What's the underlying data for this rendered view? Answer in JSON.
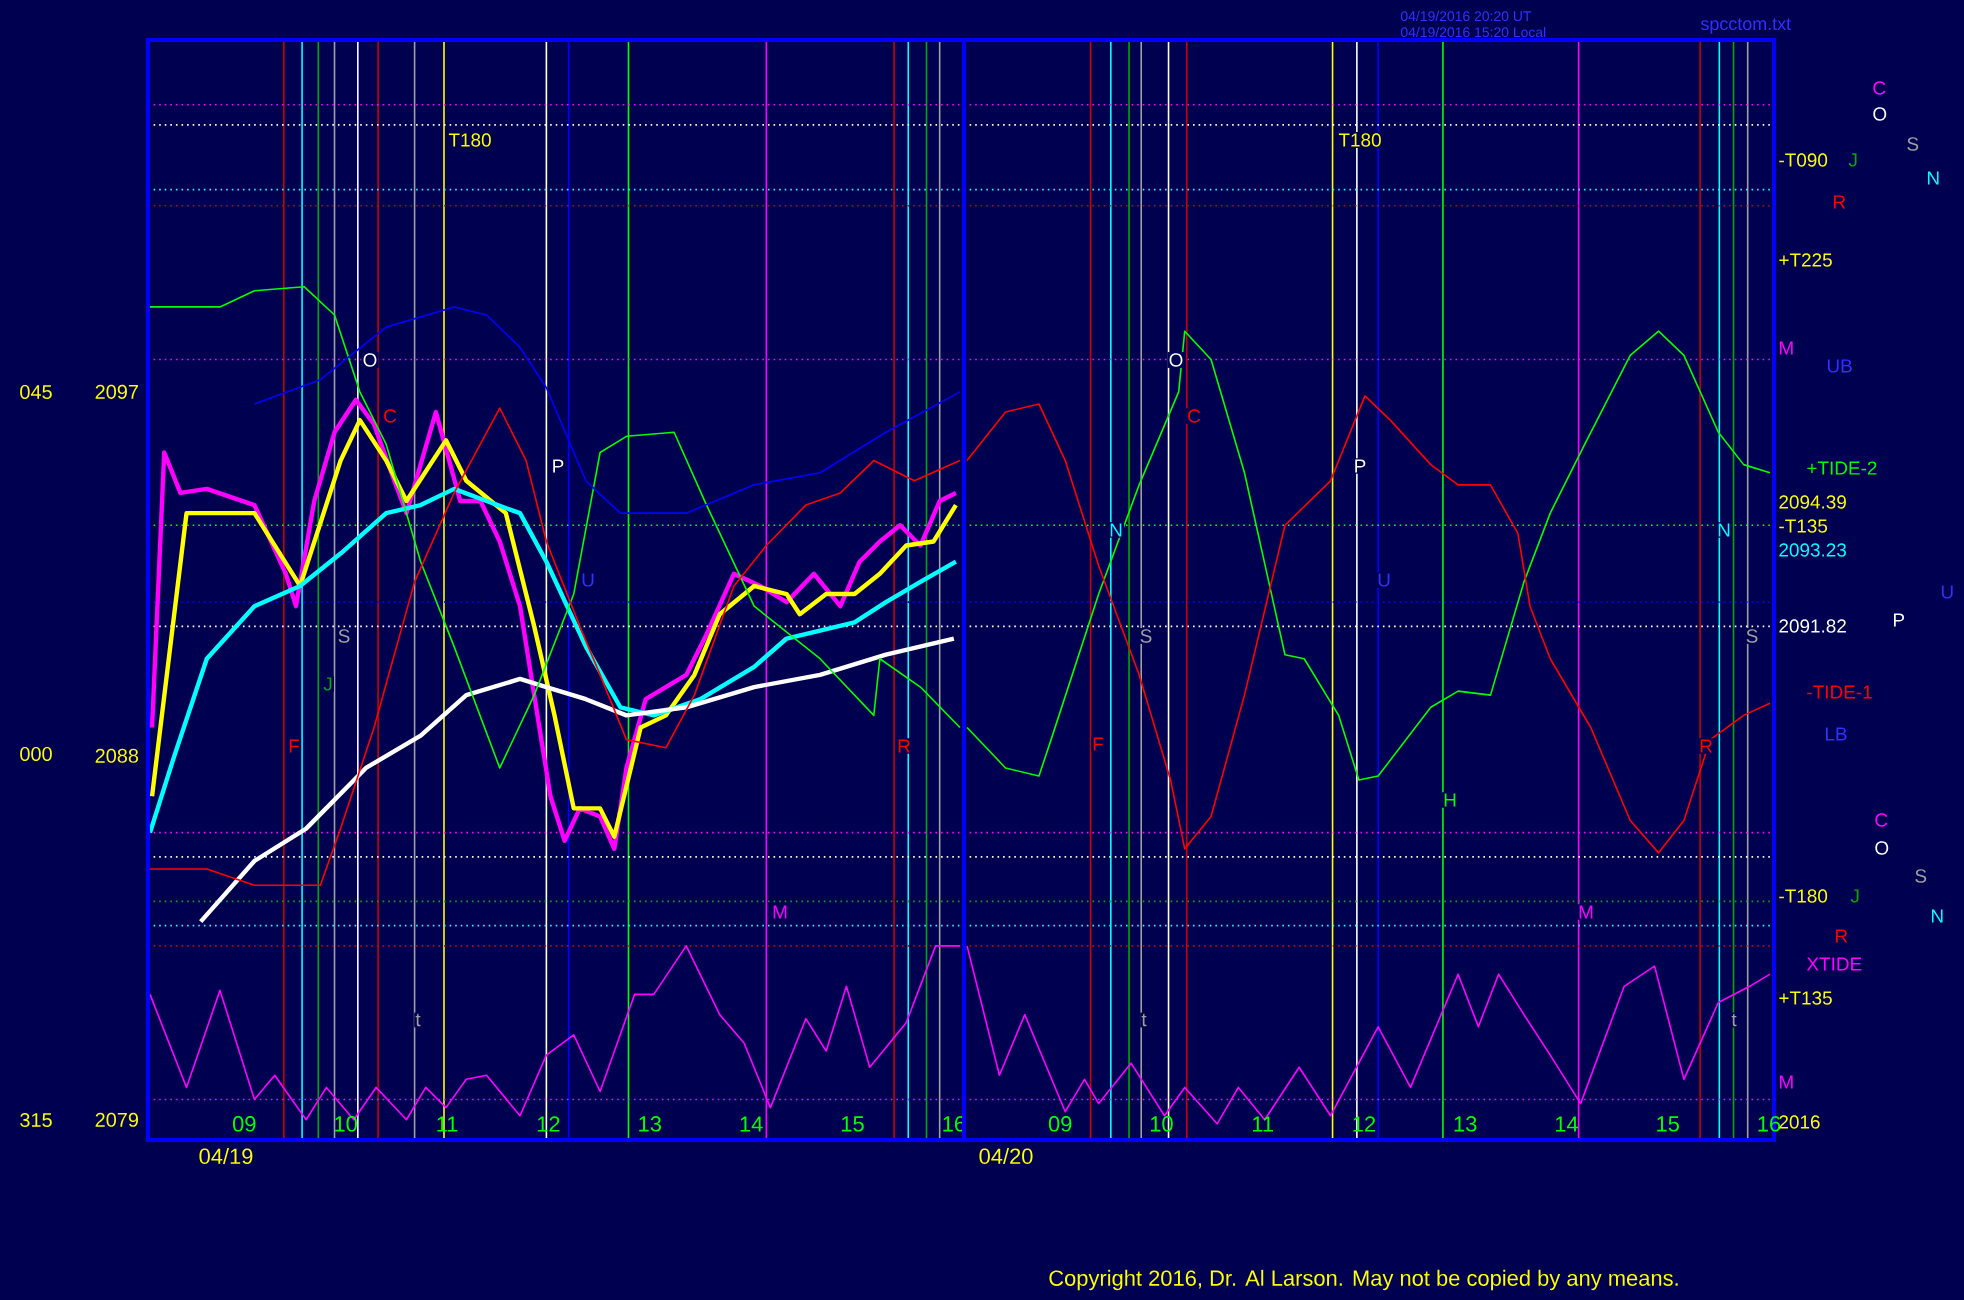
{
  "chart_data": [
    {
      "type": "line",
      "line_style": "solid",
      "xlim": [
        8.05,
        16.1
      ],
      "ylim": [
        2078.5,
        2105.7
      ],
      "xticks": [
        {
          "value": 9,
          "label": "09"
        },
        {
          "value": 10,
          "label": "10"
        },
        {
          "value": 11,
          "label": "11"
        },
        {
          "value": 12,
          "label": "12"
        },
        {
          "value": 13,
          "label": "13"
        },
        {
          "value": 14,
          "label": "14"
        },
        {
          "value": 15,
          "label": "15"
        },
        {
          "value": 16,
          "label": "16"
        }
      ],
      "yticks": [
        2079,
        2088,
        2097
      ],
      "series": [
        {
          "color": "#ff00ff",
          "x": [
            8.09,
            8.21,
            8.37,
            8.63,
            9.1,
            9.41,
            9.51,
            9.69,
            9.89,
            10.1,
            10.28,
            10.48,
            10.6,
            10.89,
            11.13,
            11.33,
            11.52,
            11.72,
            11.86,
            12.02,
            12.16,
            12.31,
            12.51,
            12.65,
            12.77,
            12.96,
            13.16,
            13.36,
            13.56,
            13.83,
            14.09,
            14.35,
            14.62,
            14.88,
            15.07,
            15.27,
            15.47,
            15.67,
            15.86,
            16.02
          ],
          "values": [
            2088.7,
            2095.5,
            2094.5,
            2094.6,
            2094.2,
            2092.5,
            2091.7,
            2094.3,
            2096.0,
            2096.8,
            2096.2,
            2094.8,
            2094.0,
            2096.5,
            2094.3,
            2094.3,
            2093.3,
            2091.7,
            2089.5,
            2087.0,
            2085.9,
            2086.7,
            2086.5,
            2085.7,
            2087.7,
            2089.4,
            2089.7,
            2090.0,
            2091.0,
            2092.5,
            2092.2,
            2091.8,
            2092.5,
            2091.7,
            2092.8,
            2093.3,
            2093.7,
            2093.2,
            2094.3,
            2094.5
          ]
        },
        {
          "color": "#ffff00",
          "x": [
            8.09,
            8.43,
            9.1,
            9.55,
            9.95,
            10.14,
            10.4,
            10.6,
            10.99,
            11.19,
            11.58,
            11.86,
            12.06,
            12.25,
            12.51,
            12.65,
            12.91,
            13.16,
            13.44,
            13.69,
            14.03,
            14.35,
            14.48,
            14.74,
            15.02,
            15.27,
            15.53,
            15.8,
            16.02
          ],
          "values": [
            2087.0,
            2094.0,
            2094.0,
            2092.2,
            2095.3,
            2096.3,
            2095.3,
            2094.3,
            2095.8,
            2094.8,
            2094.0,
            2091.2,
            2089.0,
            2086.7,
            2086.7,
            2086.0,
            2088.7,
            2089.0,
            2090.0,
            2091.5,
            2092.2,
            2092.0,
            2091.5,
            2092.0,
            2092.0,
            2092.5,
            2093.2,
            2093.3,
            2094.2
          ]
        },
        {
          "color": "#00ffff",
          "x": [
            8.07,
            8.31,
            8.63,
            9.1,
            9.55,
            9.95,
            10.4,
            10.74,
            11.07,
            11.39,
            11.72,
            11.98,
            12.37,
            12.71,
            13.04,
            13.5,
            14.03,
            14.35,
            15.02,
            15.33,
            15.67,
            16.02
          ],
          "values": [
            2086.1,
            2088.0,
            2090.4,
            2091.7,
            2092.2,
            2093.0,
            2094.0,
            2094.2,
            2094.6,
            2094.3,
            2094.0,
            2092.8,
            2090.7,
            2089.2,
            2089.0,
            2089.4,
            2090.2,
            2090.9,
            2091.3,
            2091.8,
            2092.3,
            2092.8
          ]
        },
        {
          "color": "#ffffff",
          "x": [
            8.57,
            9.1,
            9.61,
            10.2,
            10.74,
            11.19,
            11.72,
            11.98,
            12.37,
            12.77,
            13.36,
            14.03,
            14.68,
            15.33,
            16.0
          ],
          "values": [
            2083.9,
            2085.4,
            2086.2,
            2087.7,
            2088.5,
            2089.5,
            2089.9,
            2089.7,
            2089.4,
            2089.0,
            2089.2,
            2089.7,
            2090.0,
            2090.5,
            2090.9
          ]
        },
        {
          "color": "#00ff00",
          "x": [
            8.07,
            8.76,
            9.1,
            9.59,
            9.89,
            10.14,
            10.4,
            10.74,
            11.07,
            11.52,
            11.86,
            12.25,
            12.51,
            12.77,
            13.24,
            13.56,
            14.03,
            14.68,
            15.21,
            15.27,
            15.67,
            16.06
          ],
          "values": [
            2099.1,
            2099.1,
            2099.5,
            2099.6,
            2098.9,
            2097.0,
            2095.7,
            2092.8,
            2090.7,
            2087.7,
            2089.5,
            2092.0,
            2095.5,
            2095.9,
            2096.0,
            2094.2,
            2091.7,
            2090.4,
            2089.0,
            2090.4,
            2089.7,
            2088.7
          ]
        },
        {
          "color": "#ff0000",
          "x": [
            8.07,
            8.63,
            9.1,
            9.75,
            9.95,
            10.28,
            10.68,
            11.07,
            11.52,
            11.78,
            11.98,
            12.31,
            12.51,
            12.77,
            13.16,
            13.44,
            13.83,
            14.15,
            14.54,
            14.88,
            15.21,
            15.61,
            16.06
          ],
          "values": [
            2085.2,
            2085.2,
            2084.8,
            2084.8,
            2086.2,
            2088.7,
            2092.3,
            2094.5,
            2096.6,
            2095.3,
            2093.3,
            2091.2,
            2090.0,
            2088.4,
            2088.2,
            2089.5,
            2092.2,
            2093.2,
            2094.2,
            2094.5,
            2095.3,
            2094.8,
            2095.3
          ]
        },
        {
          "color": "#0000ff",
          "x": [
            9.1,
            9.75,
            10.4,
            11.07,
            11.39,
            11.72,
            11.98,
            12.37,
            12.71,
            13.36,
            14.03,
            14.68,
            15.33,
            16.06
          ],
          "values": [
            2096.7,
            2097.3,
            2098.6,
            2099.1,
            2098.9,
            2098.1,
            2097.1,
            2094.8,
            2094.0,
            2094.0,
            2094.7,
            2095.0,
            2096.0,
            2097.0
          ]
        },
        {
          "color": "#ff00ff",
          "x": [
            8.07,
            8.43,
            8.76,
            9.1,
            9.3,
            9.61,
            9.81,
            10.08,
            10.3,
            10.6,
            10.79,
            10.99,
            11.19,
            11.39,
            11.72,
            11.98,
            12.25,
            12.51,
            12.85,
            13.04,
            13.36,
            13.69,
            13.93,
            14.19,
            14.54,
            14.74,
            14.94,
            15.17,
            15.53,
            15.82,
            16.06
          ],
          "values": [
            2082.1,
            2079.8,
            2082.2,
            2079.5,
            2080.1,
            2079.0,
            2079.8,
            2079.0,
            2079.8,
            2079.0,
            2079.8,
            2079.3,
            2080.0,
            2080.1,
            2079.1,
            2080.6,
            2081.1,
            2079.7,
            2082.1,
            2082.1,
            2083.3,
            2081.6,
            2080.9,
            2079.3,
            2081.5,
            2080.7,
            2082.3,
            2080.3,
            2081.4,
            2083.3,
            2083.3
          ]
        }
      ],
      "ref_lines": [
        {
          "axis": "x",
          "value": 9.39,
          "color": "#cc0000",
          "line_style": "solid"
        },
        {
          "axis": "x",
          "value": 9.57,
          "color": "#00ffff",
          "line_style": "solid"
        },
        {
          "axis": "x",
          "value": 9.73,
          "color": "#00aa00",
          "line_style": "solid"
        },
        {
          "axis": "x",
          "value": 9.89,
          "color": "#a0a0a0",
          "line_style": "solid"
        },
        {
          "axis": "x",
          "value": 10.12,
          "color": "#ffffff",
          "line_style": "solid"
        },
        {
          "axis": "x",
          "value": 10.32,
          "color": "#cc0000",
          "line_style": "solid"
        },
        {
          "axis": "x",
          "value": 10.68,
          "color": "#a0a0a0",
          "line_style": "solid"
        },
        {
          "axis": "x",
          "value": 10.97,
          "color": "#ffff00",
          "line_style": "solid"
        },
        {
          "axis": "x",
          "value": 11.98,
          "color": "#ffffff",
          "line_style": "solid"
        },
        {
          "axis": "x",
          "value": 12.2,
          "color": "#0000ff",
          "line_style": "solid"
        },
        {
          "axis": "x",
          "value": 12.79,
          "color": "#00ff00",
          "line_style": "solid"
        },
        {
          "axis": "x",
          "value": 14.15,
          "color": "#ff00ff",
          "line_style": "solid"
        },
        {
          "axis": "x",
          "value": 15.41,
          "color": "#cc0000",
          "line_style": "solid"
        },
        {
          "axis": "x",
          "value": 15.55,
          "color": "#00ffff",
          "line_style": "solid"
        },
        {
          "axis": "x",
          "value": 15.73,
          "color": "#00aa00",
          "line_style": "solid"
        },
        {
          "axis": "x",
          "value": 15.86,
          "color": "#a0a0a0",
          "line_style": "solid"
        },
        {
          "axis": "y",
          "value": 2104.1,
          "color": "#ff00ff",
          "line_style": "dotted"
        },
        {
          "axis": "y",
          "value": 2103.6,
          "color": "#ffffff",
          "line_style": "dotted"
        },
        {
          "axis": "y",
          "value": 2102.0,
          "color": "#00ffff",
          "line_style": "dotted"
        },
        {
          "axis": "y",
          "value": 2101.6,
          "color": "#cc0000",
          "line_style": "dotted"
        },
        {
          "axis": "y",
          "value": 2097.8,
          "color": "#ff00ff",
          "line_style": "dotted"
        },
        {
          "axis": "y",
          "value": 2093.7,
          "color": "#00ff00",
          "line_style": "dotted"
        },
        {
          "axis": "y",
          "value": 2091.8,
          "color": "#0000ff",
          "line_style": "dotted"
        },
        {
          "axis": "y",
          "value": 2091.2,
          "color": "#ffffff",
          "line_style": "dotted"
        },
        {
          "axis": "y",
          "value": 2086.1,
          "color": "#ff00ff",
          "line_style": "dotted"
        },
        {
          "axis": "y",
          "value": 2085.5,
          "color": "#ffffff",
          "line_style": "dotted"
        },
        {
          "axis": "y",
          "value": 2084.4,
          "color": "#00aa00",
          "line_style": "dotted"
        },
        {
          "axis": "y",
          "value": 2083.8,
          "color": "#00ffff",
          "line_style": "dotted"
        },
        {
          "axis": "y",
          "value": 2083.3,
          "color": "#cc0000",
          "line_style": "dotted"
        },
        {
          "axis": "y",
          "value": 2079.5,
          "color": "#ff00ff",
          "line_style": "dotted"
        }
      ],
      "annotations": [
        "T180",
        "O",
        "C",
        "P",
        "S",
        "J",
        "F",
        "U",
        "M",
        "t",
        "R",
        "04/19",
        "045",
        "000",
        "315"
      ]
    },
    {
      "type": "line",
      "line_style": "solid",
      "tick_labels": "x",
      "xlim": [
        8.05,
        16.05
      ],
      "ylim": [
        2078.5,
        2105.7
      ],
      "xticks": [
        {
          "value": 9,
          "label": "09"
        },
        {
          "value": 10,
          "label": "10"
        },
        {
          "value": 11,
          "label": "11"
        },
        {
          "value": 12,
          "label": "12"
        },
        {
          "value": 13,
          "label": "13"
        },
        {
          "value": 14,
          "label": "14"
        },
        {
          "value": 15,
          "label": "15"
        },
        {
          "value": 16,
          "label": "16"
        }
      ],
      "series": [
        {
          "color": "#00ff00",
          "x": [
            8.08,
            8.46,
            8.79,
            8.91,
            9.38,
            9.78,
            10.17,
            10.23,
            10.49,
            10.82,
            11.22,
            11.41,
            11.75,
            11.95,
            12.14,
            12.66,
            12.93,
            13.25,
            13.58,
            13.84,
            14.18,
            14.63,
            14.91,
            15.16,
            15.5,
            15.75,
            16.01
          ],
          "values": [
            2088.7,
            2087.7,
            2087.5,
            2088.4,
            2092.0,
            2094.7,
            2097.0,
            2098.5,
            2097.8,
            2095.0,
            2090.5,
            2090.4,
            2089.0,
            2087.4,
            2087.5,
            2089.2,
            2089.6,
            2089.5,
            2092.3,
            2094.0,
            2095.7,
            2097.9,
            2098.5,
            2097.9,
            2096.0,
            2095.2,
            2095.0
          ]
        },
        {
          "color": "#ff0000",
          "x": [
            8.08,
            8.46,
            8.79,
            9.05,
            9.38,
            9.78,
            10.09,
            10.23,
            10.49,
            10.82,
            11.22,
            11.67,
            12.01,
            12.26,
            12.66,
            12.93,
            13.25,
            13.52,
            13.64,
            13.84,
            14.24,
            14.63,
            14.91,
            15.16,
            15.42,
            15.75,
            16.01
          ],
          "values": [
            2095.3,
            2096.5,
            2096.7,
            2095.3,
            2092.7,
            2090.0,
            2087.4,
            2085.7,
            2086.5,
            2089.5,
            2093.7,
            2094.8,
            2096.9,
            2096.3,
            2095.2,
            2094.7,
            2094.7,
            2093.5,
            2091.7,
            2090.4,
            2088.7,
            2086.4,
            2085.6,
            2086.4,
            2088.4,
            2089.0,
            2089.3
          ]
        },
        {
          "color": "#ff00ff",
          "x": [
            8.08,
            8.4,
            8.65,
            9.05,
            9.24,
            9.38,
            9.7,
            10.03,
            10.23,
            10.55,
            10.76,
            11.02,
            11.36,
            11.67,
            12.14,
            12.46,
            12.93,
            13.13,
            13.33,
            13.58,
            13.84,
            14.14,
            14.57,
            14.87,
            15.16,
            15.5,
            15.81,
            16.01
          ],
          "values": [
            2083.3,
            2080.1,
            2081.6,
            2079.2,
            2080.0,
            2079.4,
            2080.4,
            2079.1,
            2079.8,
            2078.9,
            2079.8,
            2079.0,
            2080.3,
            2079.1,
            2081.3,
            2079.8,
            2082.6,
            2081.3,
            2082.6,
            2081.6,
            2080.6,
            2079.4,
            2082.3,
            2082.8,
            2080.0,
            2081.9,
            2082.3,
            2082.6
          ]
        }
      ],
      "ref_lines": [
        {
          "axis": "x",
          "value": 9.3,
          "color": "#cc0000",
          "line_style": "solid"
        },
        {
          "axis": "x",
          "value": 9.5,
          "color": "#00ffff",
          "line_style": "solid"
        },
        {
          "axis": "x",
          "value": 9.68,
          "color": "#00aa00",
          "line_style": "solid"
        },
        {
          "axis": "x",
          "value": 9.8,
          "color": "#a0a0a0",
          "line_style": "solid"
        },
        {
          "axis": "x",
          "value": 10.07,
          "color": "#ffffff",
          "line_style": "solid"
        },
        {
          "axis": "x",
          "value": 10.25,
          "color": "#cc0000",
          "line_style": "solid"
        },
        {
          "axis": "x",
          "value": 11.69,
          "color": "#ffff00",
          "line_style": "solid"
        },
        {
          "axis": "x",
          "value": 11.93,
          "color": "#ffffff",
          "line_style": "solid"
        },
        {
          "axis": "x",
          "value": 12.14,
          "color": "#0000ff",
          "line_style": "solid"
        },
        {
          "axis": "x",
          "value": 12.78,
          "color": "#00ff00",
          "line_style": "solid"
        },
        {
          "axis": "x",
          "value": 14.12,
          "color": "#ff00ff",
          "line_style": "solid"
        },
        {
          "axis": "x",
          "value": 15.32,
          "color": "#cc0000",
          "line_style": "solid"
        },
        {
          "axis": "x",
          "value": 15.51,
          "color": "#00ffff",
          "line_style": "solid"
        },
        {
          "axis": "x",
          "value": 15.65,
          "color": "#00aa00",
          "line_style": "solid"
        },
        {
          "axis": "x",
          "value": 15.79,
          "color": "#a0a0a0",
          "line_style": "solid"
        },
        {
          "axis": "y",
          "value": 2104.1,
          "color": "#ff00ff",
          "line_style": "dotted"
        },
        {
          "axis": "y",
          "value": 2103.6,
          "color": "#ffffff",
          "line_style": "dotted"
        },
        {
          "axis": "y",
          "value": 2102.0,
          "color": "#00ffff",
          "line_style": "dotted"
        },
        {
          "axis": "y",
          "value": 2101.6,
          "color": "#cc0000",
          "line_style": "dotted"
        },
        {
          "axis": "y",
          "value": 2097.8,
          "color": "#ff00ff",
          "line_style": "dotted"
        },
        {
          "axis": "y",
          "value": 2093.7,
          "color": "#00ff00",
          "line_style": "dotted"
        },
        {
          "axis": "y",
          "value": 2091.8,
          "color": "#0000ff",
          "line_style": "dotted"
        },
        {
          "axis": "y",
          "value": 2091.2,
          "color": "#ffffff",
          "line_style": "dotted"
        },
        {
          "axis": "y",
          "value": 2086.1,
          "color": "#ff00ff",
          "line_style": "dotted"
        },
        {
          "axis": "y",
          "value": 2085.5,
          "color": "#ffffff",
          "line_style": "dotted"
        },
        {
          "axis": "y",
          "value": 2084.4,
          "color": "#00aa00",
          "line_style": "dotted"
        },
        {
          "axis": "y",
          "value": 2083.8,
          "color": "#00ffff",
          "line_style": "dotted"
        },
        {
          "axis": "y",
          "value": 2083.3,
          "color": "#cc0000",
          "line_style": "dotted"
        },
        {
          "axis": "y",
          "value": 2079.5,
          "color": "#ff00ff",
          "line_style": "dotted"
        }
      ],
      "annotations": [
        "T180",
        "O",
        "C",
        "N",
        "S",
        "F",
        "P",
        "U",
        "H",
        "M",
        "R",
        "N",
        "S",
        "t",
        "t",
        "C",
        "O",
        "S",
        "N",
        "-T090",
        "J",
        "R",
        "+T225",
        "M",
        "UB",
        "+TIDE-2",
        "2094.39",
        "-T135",
        "2093.23",
        "U",
        "2091.82",
        "P",
        "-TIDE-1",
        "LB",
        "C",
        "O",
        "S",
        "-T180",
        "J",
        "N",
        "R",
        "XTIDE",
        "+T135",
        "M",
        "2016",
        "04/20",
        "04/19/2016 20:20 UT",
        "04/19/2016 15:20 Local",
        "spcctom.txt",
        "Copyright 2016, Dr. Al Larson. May not be copied by any means."
      ]
    }
  ]
}
